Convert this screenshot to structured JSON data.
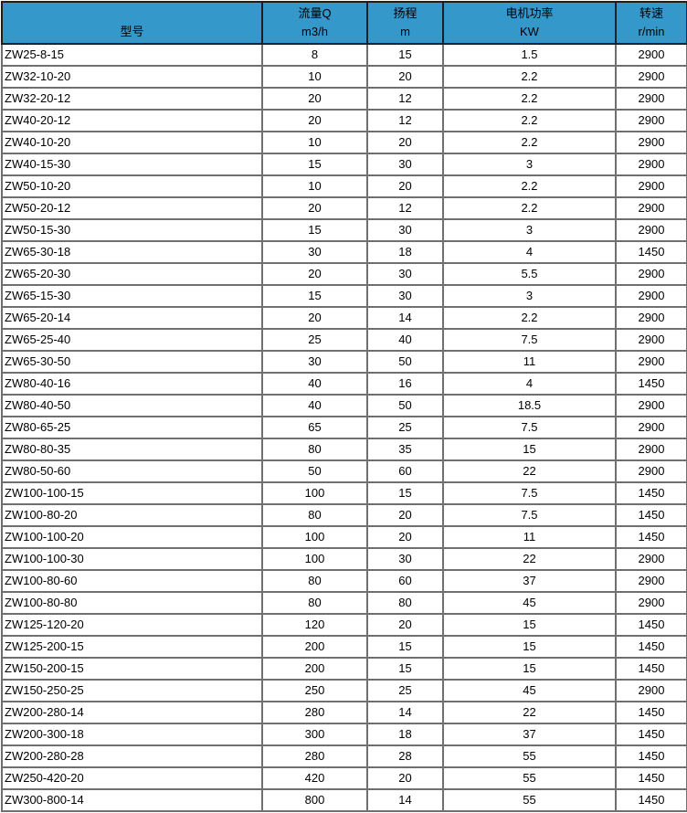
{
  "colors": {
    "header_bg": "#3498cb",
    "header_border": "#1e1e1e",
    "cell_border": "#6f6f6f",
    "text": "#000000"
  },
  "table": {
    "columns": [
      {
        "key": "model",
        "line1": "",
        "line2": "型号"
      },
      {
        "key": "flow",
        "line1": "流量Q",
        "line2": "m3/h"
      },
      {
        "key": "head",
        "line1": "扬程",
        "line2": "m"
      },
      {
        "key": "power",
        "line1": "电机功率",
        "line2": "KW"
      },
      {
        "key": "speed",
        "line1": "转速",
        "line2": "r/min"
      }
    ],
    "rows": [
      [
        "ZW25-8-15",
        "8",
        "15",
        "1.5",
        "2900"
      ],
      [
        "ZW32-10-20",
        "10",
        "20",
        "2.2",
        "2900"
      ],
      [
        "ZW32-20-12",
        "20",
        "12",
        "2.2",
        "2900"
      ],
      [
        "ZW40-20-12",
        "20",
        "12",
        "2.2",
        "2900"
      ],
      [
        "ZW40-10-20",
        "10",
        "20",
        "2.2",
        "2900"
      ],
      [
        "ZW40-15-30",
        "15",
        "30",
        "3",
        "2900"
      ],
      [
        "ZW50-10-20",
        "10",
        "20",
        "2.2",
        "2900"
      ],
      [
        "ZW50-20-12",
        "20",
        "12",
        "2.2",
        "2900"
      ],
      [
        "ZW50-15-30",
        "15",
        "30",
        "3",
        "2900"
      ],
      [
        "ZW65-30-18",
        "30",
        "18",
        "4",
        "1450"
      ],
      [
        "ZW65-20-30",
        "20",
        "30",
        "5.5",
        "2900"
      ],
      [
        "ZW65-15-30",
        "15",
        "30",
        "3",
        "2900"
      ],
      [
        "ZW65-20-14",
        "20",
        "14",
        "2.2",
        "2900"
      ],
      [
        "ZW65-25-40",
        "25",
        "40",
        "7.5",
        "2900"
      ],
      [
        "ZW65-30-50",
        "30",
        "50",
        "11",
        "2900"
      ],
      [
        "ZW80-40-16",
        "40",
        "16",
        "4",
        "1450"
      ],
      [
        "ZW80-40-50",
        "40",
        "50",
        "18.5",
        "2900"
      ],
      [
        "ZW80-65-25",
        "65",
        "25",
        "7.5",
        "2900"
      ],
      [
        "ZW80-80-35",
        "80",
        "35",
        "15",
        "2900"
      ],
      [
        "ZW80-50-60",
        "50",
        "60",
        "22",
        "2900"
      ],
      [
        "ZW100-100-15",
        "100",
        "15",
        "7.5",
        "1450"
      ],
      [
        "ZW100-80-20",
        "80",
        "20",
        "7.5",
        "1450"
      ],
      [
        "ZW100-100-20",
        "100",
        "20",
        "11",
        "1450"
      ],
      [
        "ZW100-100-30",
        "100",
        "30",
        "22",
        "2900"
      ],
      [
        "ZW100-80-60",
        "80",
        "60",
        "37",
        "2900"
      ],
      [
        "ZW100-80-80",
        "80",
        "80",
        "45",
        "2900"
      ],
      [
        "ZW125-120-20",
        "120",
        "20",
        "15",
        "1450"
      ],
      [
        "ZW125-200-15",
        "200",
        "15",
        "15",
        "1450"
      ],
      [
        "ZW150-200-15",
        "200",
        "15",
        "15",
        "1450"
      ],
      [
        "ZW150-250-25",
        "250",
        "25",
        "45",
        "2900"
      ],
      [
        "ZW200-280-14",
        "280",
        "14",
        "22",
        "1450"
      ],
      [
        "ZW200-300-18",
        "300",
        "18",
        "37",
        "1450"
      ],
      [
        "ZW200-280-28",
        "280",
        "28",
        "55",
        "1450"
      ],
      [
        "ZW250-420-20",
        "420",
        "20",
        "55",
        "1450"
      ],
      [
        "ZW300-800-14",
        "800",
        "14",
        "55",
        "1450"
      ]
    ]
  }
}
